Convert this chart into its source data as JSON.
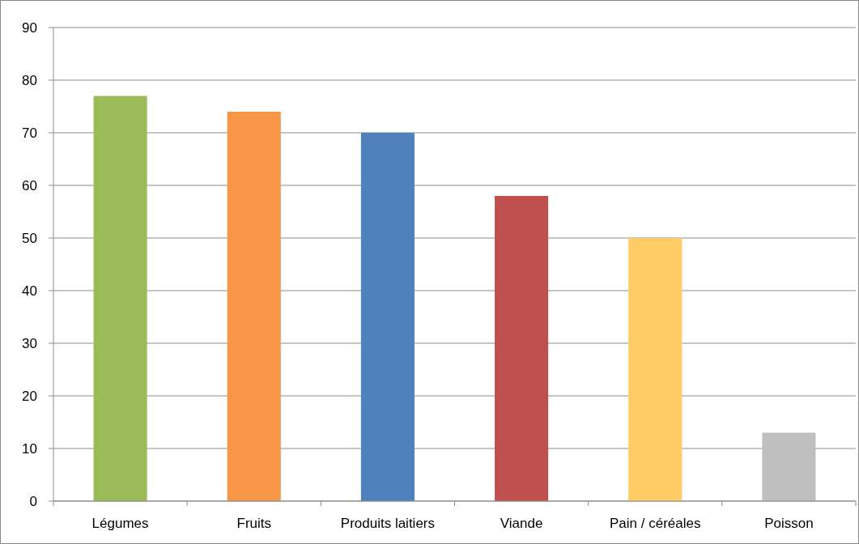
{
  "chart_data": {
    "type": "bar",
    "categories": [
      "Légumes",
      "Fruits",
      "Produits laitiers",
      "Viande",
      "Pain / céréales",
      "Poisson"
    ],
    "values": [
      77,
      74,
      70,
      58,
      50,
      13
    ],
    "colors": [
      "#9bbb59",
      "#f79646",
      "#4f81bd",
      "#c0504d",
      "#ffcc66",
      "#bfbfbf"
    ],
    "ylim": [
      0,
      90
    ],
    "yticks": [
      0,
      10,
      20,
      30,
      40,
      50,
      60,
      70,
      80,
      90
    ],
    "grid": "y"
  }
}
